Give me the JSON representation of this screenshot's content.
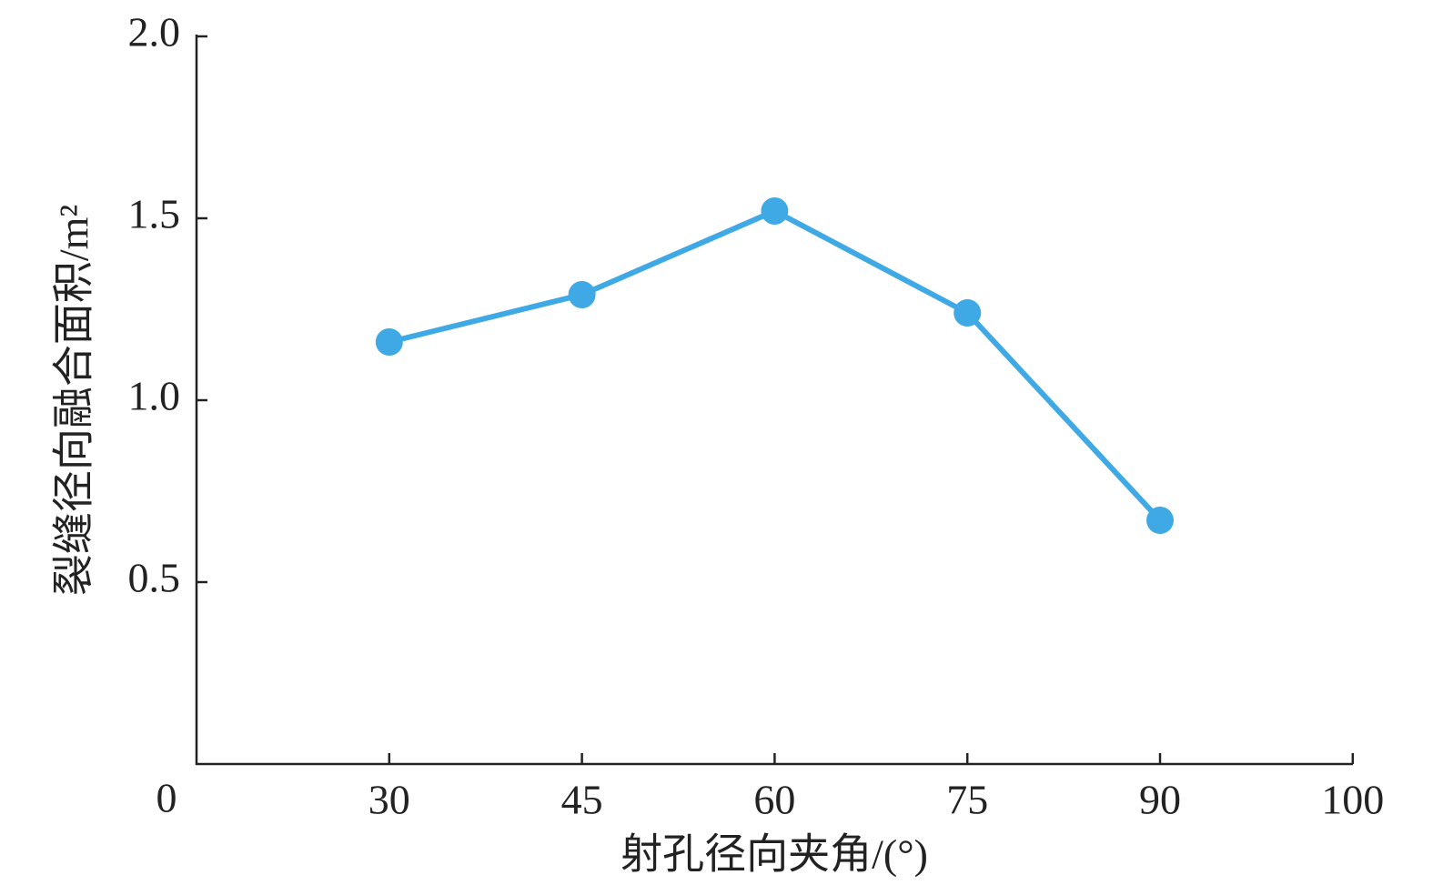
{
  "chart_data": {
    "type": "line",
    "x_label": "射孔径向夹角/(°)",
    "y_label": "裂缝径向融合面积/m²",
    "categories": [
      "30",
      "45",
      "60",
      "75",
      "90",
      "100"
    ],
    "series": [
      {
        "color": "#3fa9e6",
        "values": [
          1.16,
          1.29,
          1.52,
          1.24,
          0.67,
          null
        ]
      }
    ],
    "ylim": [
      0,
      2
    ],
    "yticks": [
      0,
      0.5,
      {
        "value": 1,
        "label": "1.0"
      },
      1.5,
      {
        "value": 2,
        "label": "2.0"
      }
    ]
  }
}
